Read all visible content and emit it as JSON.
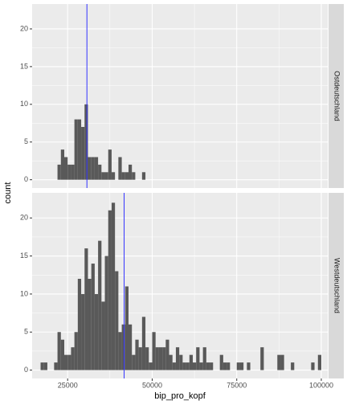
{
  "chart_data": {
    "type": "histogram",
    "x_label": "bip_pro_kopf",
    "y_label": "count",
    "bins": [
      17000,
      18000,
      19000,
      20000,
      21000,
      22000,
      23000,
      24000,
      25000,
      26000,
      27000,
      28000,
      29000,
      30000,
      31000,
      32000,
      33000,
      34000,
      35000,
      36000,
      37000,
      38000,
      39000,
      40000,
      41000,
      42000,
      43000,
      44000,
      45000,
      46000,
      47000,
      48000,
      49000,
      50000,
      51000,
      52000,
      53000,
      54000,
      55000,
      56000,
      57000,
      58000,
      59000,
      60000,
      61000,
      62000,
      63000,
      64000,
      65000,
      66000,
      67000,
      68000,
      69000,
      70000,
      71000,
      72000,
      73000,
      74000,
      75000,
      76000,
      77000,
      78000,
      79000,
      80000,
      81000,
      82000,
      83000,
      84000,
      85000,
      86000,
      87000,
      88000,
      89000,
      90000,
      91000,
      92000,
      93000,
      94000,
      95000,
      96000,
      97000,
      98000,
      99000,
      100000
    ],
    "facets": [
      {
        "label": "Ostdeutschland",
        "vline": 30700,
        "counts": [
          0,
          0,
          0,
          0,
          0,
          2,
          4,
          3,
          2,
          2,
          8,
          8,
          7,
          10,
          3,
          3,
          3,
          2,
          1,
          1,
          4,
          1,
          0,
          3,
          1,
          1,
          2,
          1,
          0,
          0,
          1,
          0,
          0,
          0,
          0,
          0,
          0,
          0,
          0,
          0,
          0,
          0,
          0,
          0,
          0,
          0,
          0,
          0,
          0,
          0,
          0,
          0,
          0,
          0,
          0,
          0,
          0,
          0,
          0,
          0,
          0,
          0,
          0,
          0,
          0,
          0,
          0,
          0,
          0,
          0,
          0,
          0,
          0,
          0,
          0,
          0,
          0,
          0,
          0,
          0,
          0,
          0,
          0
        ]
      },
      {
        "label": "Westdeutschland",
        "vline": 41700,
        "counts": [
          1,
          1,
          0,
          0,
          1,
          5,
          4,
          2,
          2,
          3,
          5,
          12,
          10,
          16,
          12,
          14,
          10,
          17,
          9,
          15,
          21,
          22,
          13,
          5,
          6,
          11,
          6,
          2,
          4,
          3,
          7,
          3,
          1,
          5,
          3,
          3,
          3,
          4,
          2,
          1,
          3,
          2,
          1,
          1,
          2,
          1,
          3,
          1,
          3,
          1,
          1,
          0,
          0,
          2,
          1,
          1,
          0,
          0,
          1,
          1,
          0,
          1,
          0,
          0,
          0,
          3,
          0,
          0,
          0,
          0,
          2,
          2,
          0,
          0,
          1,
          0,
          0,
          0,
          0,
          0,
          1,
          0,
          2
        ]
      }
    ],
    "bar_color": "#595959",
    "vline_color": "#3333ff",
    "xlim": [
      14500,
      101900
    ],
    "xticks": [
      25000,
      50000,
      75000,
      100000
    ],
    "ylim": [
      -1.1,
      23.3
    ],
    "yticks": [
      0,
      5,
      10,
      15,
      20
    ],
    "grid": true
  }
}
